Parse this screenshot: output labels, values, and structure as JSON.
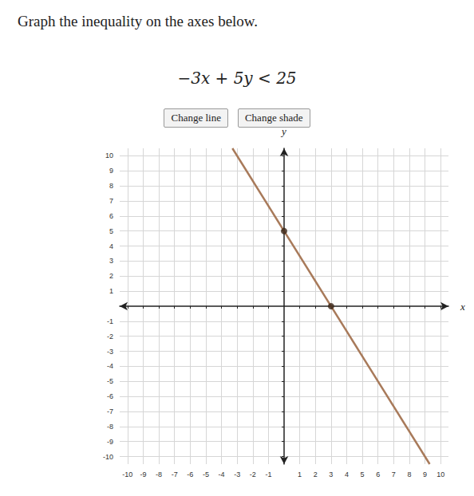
{
  "chart_data": {
    "type": "line",
    "title": "Graph the inequality on the axes below.",
    "subtitle": "−3x + 5y < 25",
    "annotations": [
      "Change line",
      "Change shade"
    ],
    "x_label": "x",
    "y_label": "y",
    "xlim": [
      -10.5,
      10.5
    ],
    "xticks": [
      -10,
      -9,
      -8,
      -7,
      -6,
      -5,
      -4,
      -3,
      -2,
      -1,
      1,
      2,
      3,
      4,
      5,
      6,
      7,
      8,
      9,
      10
    ],
    "ylim": [
      -10.5,
      10.5
    ],
    "yticks": [
      -10,
      -9,
      -8,
      -7,
      -6,
      -5,
      -4,
      -3,
      -2,
      -1,
      1,
      2,
      3,
      4,
      5,
      6,
      7,
      8,
      9,
      10
    ],
    "grid": true,
    "series": [
      {
        "type": "line",
        "x": [
          -3.3,
          9.3
        ],
        "values": [
          10.5,
          -10.5
        ],
        "color": "#a87a5a",
        "marker": "none"
      },
      {
        "type": "scatter",
        "x": [
          0,
          3
        ],
        "values": [
          5,
          0
        ],
        "color": "#3a2616",
        "marker": "circle"
      }
    ]
  }
}
